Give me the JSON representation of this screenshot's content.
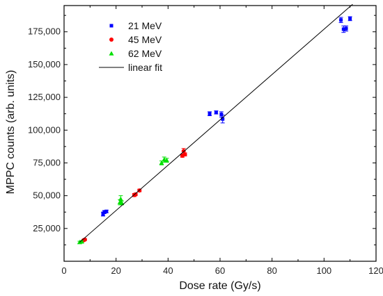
{
  "chart_data": {
    "type": "scatter",
    "xlabel": "Dose rate (Gy/s)",
    "ylabel": "MPPC counts (arb. units)",
    "xlim": [
      0,
      120
    ],
    "ylim": [
      0,
      195000
    ],
    "x_ticks": [
      0,
      20,
      40,
      60,
      80,
      100,
      120
    ],
    "x_tick_labels": [
      "0",
      "20",
      "40",
      "60",
      "80",
      "100",
      "120"
    ],
    "y_ticks": [
      25000,
      50000,
      75000,
      100000,
      125000,
      150000,
      175000
    ],
    "y_tick_labels": [
      "25,000",
      "50,000",
      "75,000",
      "100,000",
      "125,000",
      "150,000",
      "175,000"
    ],
    "grid": false,
    "legend_position": "top-left",
    "series": [
      {
        "name": "21 MeV",
        "marker": "square",
        "color": "#0000ff",
        "points": [
          {
            "x": 15,
            "y": 36000,
            "err": 1500
          },
          {
            "x": 15.5,
            "y": 37500,
            "err": 1200
          },
          {
            "x": 16.3,
            "y": 38000,
            "err": 1000
          },
          {
            "x": 56,
            "y": 112500,
            "err": 1500
          },
          {
            "x": 58.5,
            "y": 113500,
            "err": 1200
          },
          {
            "x": 60.5,
            "y": 112000,
            "err": 2000
          },
          {
            "x": 61,
            "y": 108500,
            "err": 3000
          },
          {
            "x": 106.5,
            "y": 184000,
            "err": 2000
          },
          {
            "x": 107.5,
            "y": 177000,
            "err": 2500
          },
          {
            "x": 108.5,
            "y": 177500,
            "err": 2000
          },
          {
            "x": 110,
            "y": 185000,
            "err": 1500
          }
        ]
      },
      {
        "name": "45 MeV",
        "marker": "circle",
        "color": "#ff0000",
        "points": [
          {
            "x": 7.5,
            "y": 16000,
            "err": 600
          },
          {
            "x": 8,
            "y": 16500,
            "err": 600
          },
          {
            "x": 27,
            "y": 50500,
            "err": 1200
          },
          {
            "x": 27.5,
            "y": 51000,
            "err": 1000
          },
          {
            "x": 29,
            "y": 54000,
            "err": 1000
          },
          {
            "x": 45.5,
            "y": 80500,
            "err": 1200
          },
          {
            "x": 46,
            "y": 84000,
            "err": 2000
          },
          {
            "x": 46.5,
            "y": 81500,
            "err": 1200
          }
        ]
      },
      {
        "name": "62 MeV",
        "marker": "triangle",
        "color": "#00e000",
        "points": [
          {
            "x": 6,
            "y": 14500,
            "err": 800
          },
          {
            "x": 6.8,
            "y": 15000,
            "err": 800
          },
          {
            "x": 21.5,
            "y": 45000,
            "err": 2000
          },
          {
            "x": 21.8,
            "y": 47500,
            "err": 2500
          },
          {
            "x": 22.2,
            "y": 44500,
            "err": 1500
          },
          {
            "x": 37.5,
            "y": 75000,
            "err": 1500
          },
          {
            "x": 38.5,
            "y": 77500,
            "err": 2000
          },
          {
            "x": 39.5,
            "y": 77000,
            "err": 1500
          }
        ]
      },
      {
        "name": "linear fit",
        "type": "line",
        "color": "#000000",
        "x": [
          6,
          111
        ],
        "y": [
          14500,
          196000
        ]
      }
    ]
  }
}
